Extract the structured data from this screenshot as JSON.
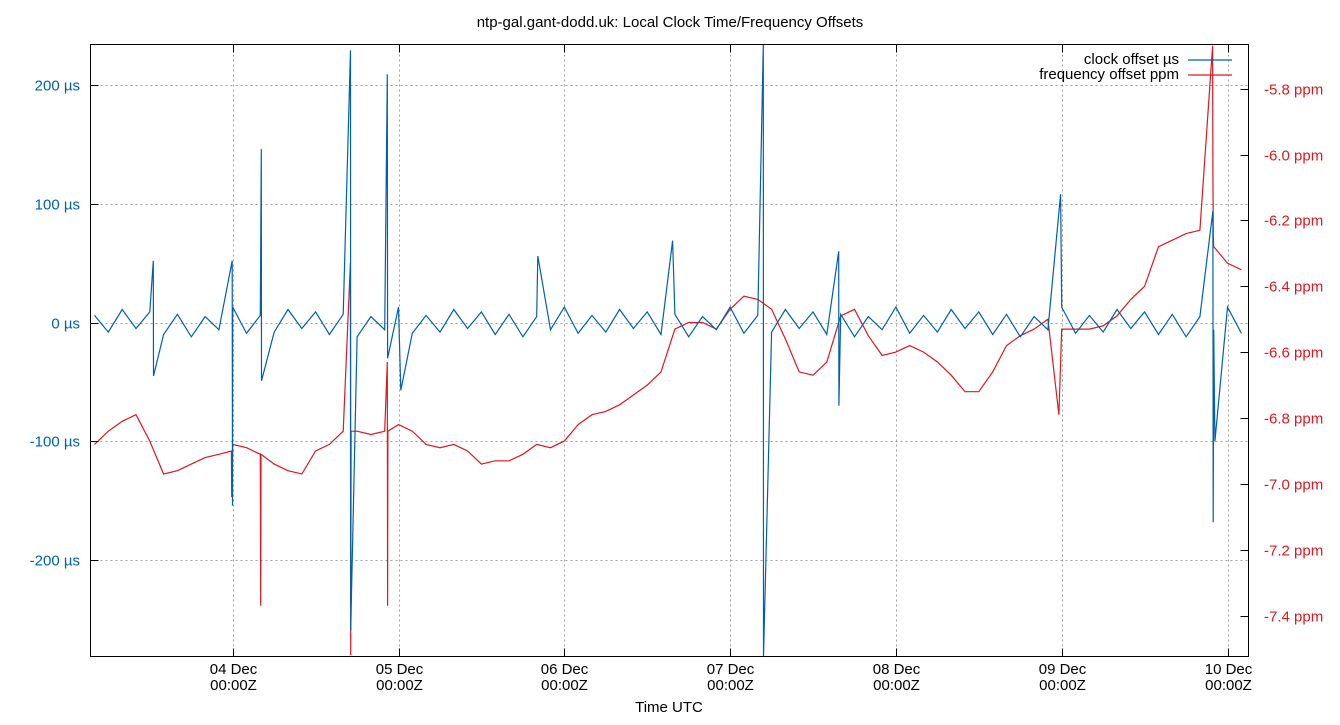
{
  "chart_data": {
    "type": "line",
    "title": "ntp-gal.gant-dodd.uk: Local Clock Time/Frequency Offsets",
    "xlabel": "Time UTC",
    "ylabel": "",
    "y2label": "",
    "grid": true,
    "legend_position": "top-right",
    "xlim": [
      "03 Dec 03:25",
      "10 Dec 03:02"
    ],
    "ylim": [
      -281,
      234
    ],
    "y2lim": [
      -7.524,
      -5.666
    ],
    "x_ticks": [
      {
        "at": "04 Dec 00:00",
        "line1": "04 Dec",
        "line2": "00:00Z"
      },
      {
        "at": "05 Dec 00:00",
        "line1": "05 Dec",
        "line2": "00:00Z"
      },
      {
        "at": "06 Dec 00:00",
        "line1": "06 Dec",
        "line2": "00:00Z"
      },
      {
        "at": "07 Dec 00:00",
        "line1": "07 Dec",
        "line2": "00:00Z"
      },
      {
        "at": "08 Dec 00:00",
        "line1": "08 Dec",
        "line2": "00:00Z"
      },
      {
        "at": "09 Dec 00:00",
        "line1": "09 Dec",
        "line2": "00:00Z"
      },
      {
        "at": "10 Dec 00:00",
        "line1": "10 Dec",
        "line2": "00:00Z"
      }
    ],
    "y_ticks": [
      {
        "value": 200,
        "label": "200 µs"
      },
      {
        "value": 100,
        "label": "100 µs"
      },
      {
        "value": 0,
        "label": "0 µs"
      },
      {
        "value": -100,
        "label": "-100 µs"
      },
      {
        "value": -200,
        "label": "-200 µs"
      }
    ],
    "y2_ticks": [
      {
        "value": -5.8,
        "label": "-5.8 ppm"
      },
      {
        "value": -6.0,
        "label": "-6.0 ppm"
      },
      {
        "value": -6.2,
        "label": "-6.2 ppm"
      },
      {
        "value": -6.4,
        "label": "-6.4 ppm"
      },
      {
        "value": -6.6,
        "label": "-6.6 ppm"
      },
      {
        "value": -6.8,
        "label": "-6.8 ppm"
      },
      {
        "value": -7.0,
        "label": "-7.0 ppm"
      },
      {
        "value": -7.2,
        "label": "-7.2 ppm"
      },
      {
        "value": -7.4,
        "label": "-7.4 ppm"
      }
    ],
    "series": [
      {
        "name": "clock offset µs",
        "axis": "left",
        "color": "#0060ad",
        "points": [
          [
            "03 Dec 04:00",
            6
          ],
          [
            "03 Dec 06:00",
            -8
          ],
          [
            "03 Dec 08:00",
            11
          ],
          [
            "03 Dec 10:00",
            -5
          ],
          [
            "03 Dec 12:00",
            9
          ],
          [
            "03 Dec 14:00",
            -10
          ],
          [
            "03 Dec 16:00",
            7
          ],
          [
            "03 Dec 18:00",
            -12
          ],
          [
            "03 Dec 20:00",
            5
          ],
          [
            "03 Dec 22:00",
            -6
          ],
          [
            "04 Dec 00:00",
            13
          ],
          [
            "04 Dec 02:00",
            -9
          ],
          [
            "04 Dec 04:00",
            6
          ],
          [
            "04 Dec 06:00",
            -8
          ],
          [
            "04 Dec 08:00",
            11
          ],
          [
            "04 Dec 10:00",
            -5
          ],
          [
            "04 Dec 12:00",
            9
          ],
          [
            "04 Dec 14:00",
            -10
          ],
          [
            "04 Dec 16:00",
            7
          ],
          [
            "04 Dec 18:00",
            -12
          ],
          [
            "04 Dec 20:00",
            5
          ],
          [
            "04 Dec 22:00",
            -6
          ],
          [
            "05 Dec 00:00",
            13
          ],
          [
            "05 Dec 02:00",
            -9
          ],
          [
            "05 Dec 04:00",
            6
          ],
          [
            "05 Dec 06:00",
            -8
          ],
          [
            "05 Dec 08:00",
            11
          ],
          [
            "05 Dec 10:00",
            -5
          ],
          [
            "05 Dec 12:00",
            9
          ],
          [
            "05 Dec 14:00",
            -10
          ],
          [
            "05 Dec 16:00",
            7
          ],
          [
            "05 Dec 18:00",
            -12
          ],
          [
            "05 Dec 20:00",
            5
          ],
          [
            "05 Dec 22:00",
            -6
          ],
          [
            "06 Dec 00:00",
            13
          ],
          [
            "06 Dec 02:00",
            -9
          ],
          [
            "06 Dec 04:00",
            6
          ],
          [
            "06 Dec 06:00",
            -8
          ],
          [
            "06 Dec 08:00",
            11
          ],
          [
            "06 Dec 10:00",
            -5
          ],
          [
            "06 Dec 12:00",
            9
          ],
          [
            "06 Dec 14:00",
            -10
          ],
          [
            "06 Dec 16:00",
            7
          ],
          [
            "06 Dec 18:00",
            -12
          ],
          [
            "06 Dec 20:00",
            5
          ],
          [
            "06 Dec 22:00",
            -6
          ],
          [
            "07 Dec 00:00",
            13
          ],
          [
            "07 Dec 02:00",
            -9
          ],
          [
            "07 Dec 04:00",
            6
          ],
          [
            "07 Dec 06:00",
            -8
          ],
          [
            "07 Dec 08:00",
            11
          ],
          [
            "07 Dec 10:00",
            -5
          ],
          [
            "07 Dec 12:00",
            9
          ],
          [
            "07 Dec 14:00",
            -10
          ],
          [
            "07 Dec 16:00",
            7
          ],
          [
            "07 Dec 18:00",
            -12
          ],
          [
            "07 Dec 20:00",
            5
          ],
          [
            "07 Dec 22:00",
            -6
          ],
          [
            "08 Dec 00:00",
            13
          ],
          [
            "08 Dec 02:00",
            -9
          ],
          [
            "08 Dec 04:00",
            6
          ],
          [
            "08 Dec 06:00",
            -8
          ],
          [
            "08 Dec 08:00",
            11
          ],
          [
            "08 Dec 10:00",
            -5
          ],
          [
            "08 Dec 12:00",
            9
          ],
          [
            "08 Dec 14:00",
            -10
          ],
          [
            "08 Dec 16:00",
            7
          ],
          [
            "08 Dec 18:00",
            -12
          ],
          [
            "08 Dec 20:00",
            5
          ],
          [
            "08 Dec 22:00",
            -6
          ],
          [
            "09 Dec 00:00",
            13
          ],
          [
            "09 Dec 02:00",
            -9
          ],
          [
            "09 Dec 04:00",
            6
          ],
          [
            "09 Dec 06:00",
            -8
          ],
          [
            "09 Dec 08:00",
            11
          ],
          [
            "09 Dec 10:00",
            -5
          ],
          [
            "09 Dec 12:00",
            9
          ],
          [
            "09 Dec 14:00",
            -10
          ],
          [
            "09 Dec 16:00",
            7
          ],
          [
            "09 Dec 18:00",
            -12
          ],
          [
            "09 Dec 20:00",
            5
          ],
          [
            "09 Dec 22:00",
            -6
          ],
          [
            "10 Dec 00:00",
            13
          ],
          [
            "10 Dec 02:00",
            -9
          ],
          [
            "03 Dec 12:30",
            52
          ],
          [
            "03 Dec 12:32",
            -45
          ],
          [
            "03 Dec 23:56",
            52
          ],
          [
            "03 Dec 23:58",
            -154
          ],
          [
            "04 Dec 04:08",
            146
          ],
          [
            "04 Dec 04:10",
            -49
          ],
          [
            "04 Dec 17:03",
            229
          ],
          [
            "04 Dec 17:05",
            -259
          ],
          [
            "04 Dec 22:23",
            209
          ],
          [
            "04 Dec 22:25",
            -30
          ],
          [
            "05 Dec 00:20",
            -57
          ],
          [
            "05 Dec 20:10",
            56
          ],
          [
            "06 Dec 15:40",
            69
          ],
          [
            "07 Dec 04:48",
            234
          ],
          [
            "07 Dec 04:50",
            -281
          ],
          [
            "07 Dec 15:43",
            60
          ],
          [
            "07 Dec 15:45",
            -70
          ],
          [
            "08 Dec 23:50",
            108
          ],
          [
            "09 Dec 21:53",
            94
          ],
          [
            "09 Dec 21:55",
            -168
          ],
          [
            "09 Dec 22:10",
            -100
          ]
        ]
      },
      {
        "name": "frequency offset ppm",
        "axis": "right",
        "color": "#dd181f",
        "points": [
          [
            "03 Dec 04:00",
            -6.88
          ],
          [
            "03 Dec 06:00",
            -6.84
          ],
          [
            "03 Dec 08:00",
            -6.81
          ],
          [
            "03 Dec 10:00",
            -6.79
          ],
          [
            "03 Dec 12:00",
            -6.87
          ],
          [
            "03 Dec 14:00",
            -6.97
          ],
          [
            "03 Dec 16:00",
            -6.96
          ],
          [
            "03 Dec 18:00",
            -6.94
          ],
          [
            "03 Dec 20:00",
            -6.92
          ],
          [
            "03 Dec 22:00",
            -6.91
          ],
          [
            "03 Dec 23:49",
            -6.9
          ],
          [
            "03 Dec 23:51",
            -7.04
          ],
          [
            "04 Dec 00:00",
            -6.88
          ],
          [
            "04 Dec 02:00",
            -6.89
          ],
          [
            "04 Dec 04:00",
            -6.91
          ],
          [
            "04 Dec 04:03",
            -7.37
          ],
          [
            "04 Dec 04:06",
            -6.91
          ],
          [
            "04 Dec 06:00",
            -6.94
          ],
          [
            "04 Dec 08:00",
            -6.96
          ],
          [
            "04 Dec 10:00",
            -6.97
          ],
          [
            "04 Dec 12:00",
            -6.9
          ],
          [
            "04 Dec 14:00",
            -6.88
          ],
          [
            "04 Dec 16:00",
            -6.84
          ],
          [
            "04 Dec 17:02",
            -6.33
          ],
          [
            "04 Dec 17:05",
            -7.52
          ],
          [
            "04 Dec 17:08",
            -6.84
          ],
          [
            "04 Dec 18:00",
            -6.84
          ],
          [
            "04 Dec 20:00",
            -6.85
          ],
          [
            "04 Dec 22:00",
            -6.84
          ],
          [
            "04 Dec 22:23",
            -6.63
          ],
          [
            "04 Dec 22:25",
            -7.37
          ],
          [
            "04 Dec 22:28",
            -6.84
          ],
          [
            "05 Dec 00:00",
            -6.82
          ],
          [
            "05 Dec 02:00",
            -6.84
          ],
          [
            "05 Dec 04:00",
            -6.88
          ],
          [
            "05 Dec 06:00",
            -6.89
          ],
          [
            "05 Dec 08:00",
            -6.88
          ],
          [
            "05 Dec 10:00",
            -6.9
          ],
          [
            "05 Dec 12:00",
            -6.94
          ],
          [
            "05 Dec 14:00",
            -6.93
          ],
          [
            "05 Dec 16:00",
            -6.93
          ],
          [
            "05 Dec 18:00",
            -6.91
          ],
          [
            "05 Dec 20:00",
            -6.88
          ],
          [
            "05 Dec 22:00",
            -6.89
          ],
          [
            "06 Dec 00:00",
            -6.87
          ],
          [
            "06 Dec 02:00",
            -6.82
          ],
          [
            "06 Dec 04:00",
            -6.79
          ],
          [
            "06 Dec 06:00",
            -6.78
          ],
          [
            "06 Dec 08:00",
            -6.76
          ],
          [
            "06 Dec 10:00",
            -6.73
          ],
          [
            "06 Dec 12:00",
            -6.7
          ],
          [
            "06 Dec 14:00",
            -6.66
          ],
          [
            "06 Dec 16:00",
            -6.53
          ],
          [
            "06 Dec 18:00",
            -6.51
          ],
          [
            "06 Dec 20:00",
            -6.51
          ],
          [
            "06 Dec 22:00",
            -6.53
          ],
          [
            "07 Dec 00:00",
            -6.47
          ],
          [
            "07 Dec 02:00",
            -6.43
          ],
          [
            "07 Dec 04:00",
            -6.44
          ],
          [
            "07 Dec 06:00",
            -6.47
          ],
          [
            "07 Dec 08:00",
            -6.56
          ],
          [
            "07 Dec 10:00",
            -6.66
          ],
          [
            "07 Dec 12:00",
            -6.67
          ],
          [
            "07 Dec 14:00",
            -6.63
          ],
          [
            "07 Dec 16:00",
            -6.49
          ],
          [
            "07 Dec 18:00",
            -6.47
          ],
          [
            "07 Dec 20:00",
            -6.55
          ],
          [
            "07 Dec 22:00",
            -6.61
          ],
          [
            "08 Dec 00:00",
            -6.6
          ],
          [
            "08 Dec 02:00",
            -6.58
          ],
          [
            "08 Dec 04:00",
            -6.6
          ],
          [
            "08 Dec 06:00",
            -6.63
          ],
          [
            "08 Dec 08:00",
            -6.67
          ],
          [
            "08 Dec 10:00",
            -6.72
          ],
          [
            "08 Dec 12:00",
            -6.72
          ],
          [
            "08 Dec 14:00",
            -6.66
          ],
          [
            "08 Dec 16:00",
            -6.58
          ],
          [
            "08 Dec 18:00",
            -6.55
          ],
          [
            "08 Dec 20:00",
            -6.53
          ],
          [
            "08 Dec 22:00",
            -6.5
          ],
          [
            "08 Dec 23:35",
            -6.79
          ],
          [
            "09 Dec 00:00",
            -6.53
          ],
          [
            "09 Dec 02:00",
            -6.53
          ],
          [
            "09 Dec 04:00",
            -6.53
          ],
          [
            "09 Dec 06:00",
            -6.52
          ],
          [
            "09 Dec 08:00",
            -6.49
          ],
          [
            "09 Dec 10:00",
            -6.44
          ],
          [
            "09 Dec 12:00",
            -6.4
          ],
          [
            "09 Dec 14:00",
            -6.28
          ],
          [
            "09 Dec 16:00",
            -6.26
          ],
          [
            "09 Dec 18:00",
            -6.24
          ],
          [
            "09 Dec 20:00",
            -6.23
          ],
          [
            "09 Dec 21:50",
            -5.67
          ],
          [
            "09 Dec 21:53",
            -6.05
          ],
          [
            "09 Dec 21:56",
            -6.25
          ],
          [
            "09 Dec 22:00",
            -6.28
          ],
          [
            "10 Dec 00:00",
            -6.33
          ],
          [
            "10 Dec 02:00",
            -6.35
          ]
        ]
      }
    ]
  }
}
